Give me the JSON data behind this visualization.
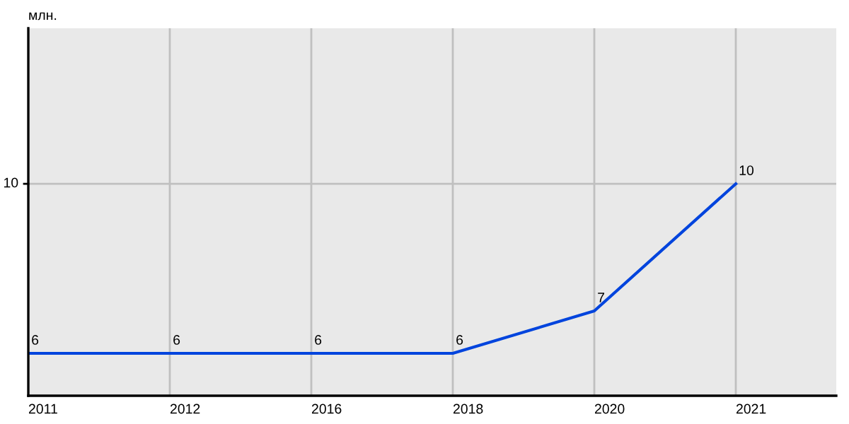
{
  "chart_data": {
    "type": "line",
    "ylabel": "млн.",
    "categories": [
      "2011",
      "2012",
      "2016",
      "2018",
      "2020",
      "2021"
    ],
    "series": [
      {
        "color": "#0044dd",
        "values": [
          6,
          6,
          6,
          6,
          7,
          10
        ]
      }
    ],
    "ylim": [
      5,
      13.67
    ],
    "ref_lines": [
      {
        "axis": "y",
        "value": 10,
        "label": "10",
        "color": "#c0c0c0"
      }
    ],
    "grid": "x",
    "data_labels": true,
    "marker": "none",
    "line_style": "solid",
    "legend": false
  }
}
